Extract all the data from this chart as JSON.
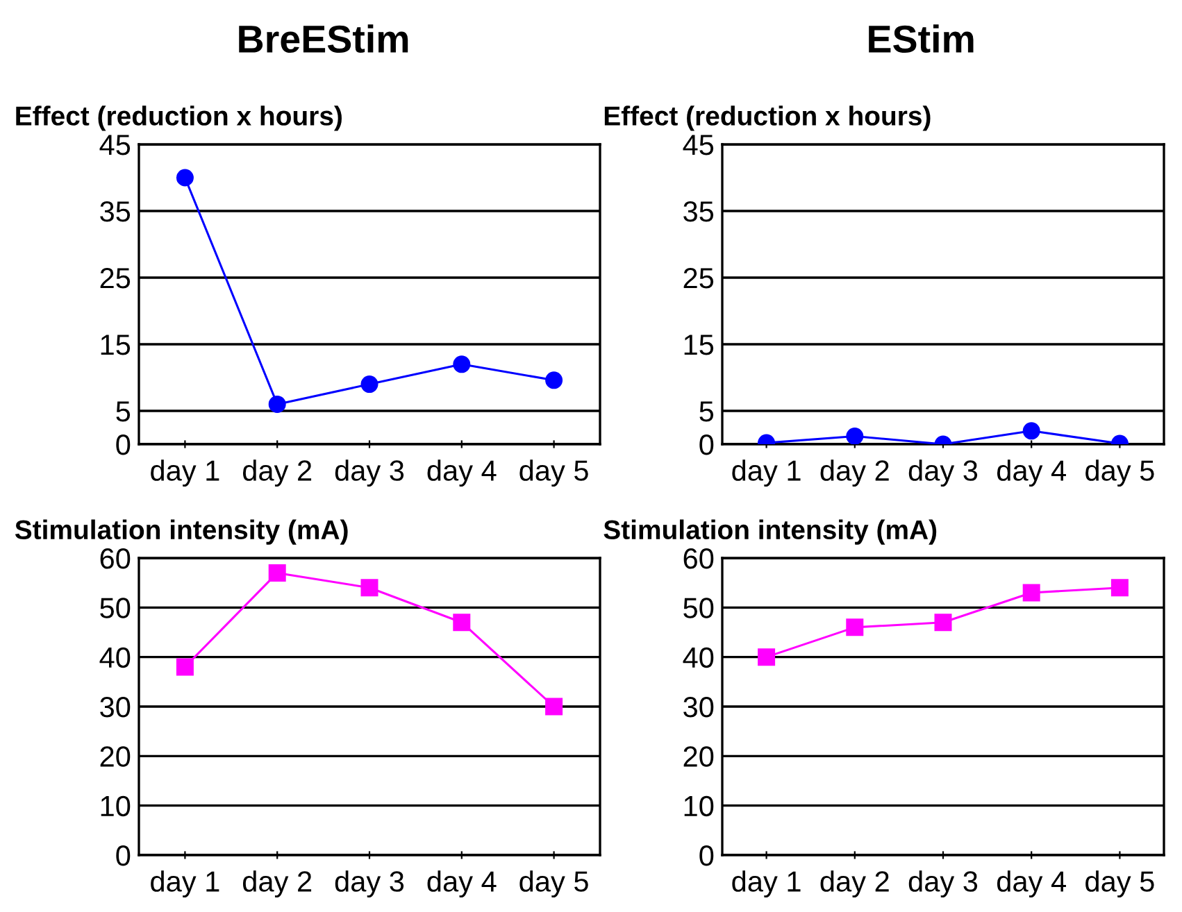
{
  "chart_data": [
    {
      "type": "line",
      "title": "BreEStim",
      "ylabel": "Effect (reduction x hours)",
      "categories": [
        "day 1",
        "day 2",
        "day 3",
        "day 4",
        "day 5"
      ],
      "series": [
        {
          "color": "#0000ff",
          "values": [
            40,
            6,
            9,
            12,
            9.6
          ]
        }
      ],
      "ylim": [
        0,
        45
      ],
      "yticks": [
        0,
        5,
        15,
        25,
        35,
        45
      ],
      "grid": "y",
      "marker": "circle",
      "line_style": "solid"
    },
    {
      "type": "line",
      "title": "EStim",
      "ylabel": "Effect (reduction x hours)",
      "categories": [
        "day 1",
        "day 2",
        "day 3",
        "day 4",
        "day 5"
      ],
      "series": [
        {
          "color": "#0000ff",
          "values": [
            0.2,
            1.2,
            0,
            2,
            0.1
          ]
        }
      ],
      "ylim": [
        0,
        45
      ],
      "yticks": [
        0,
        5,
        15,
        25,
        35,
        45
      ],
      "grid": "y",
      "marker": "circle",
      "line_style": "solid"
    },
    {
      "type": "line",
      "ylabel": "Stimulation intensity (mA)",
      "categories": [
        "day 1",
        "day 2",
        "day 3",
        "day 4",
        "day 5"
      ],
      "series": [
        {
          "color": "#ff00ff",
          "values": [
            38,
            57,
            54,
            47,
            30
          ]
        }
      ],
      "ylim": [
        0,
        60
      ],
      "yticks": [
        0,
        10,
        20,
        30,
        40,
        50,
        60
      ],
      "grid": "y",
      "marker": "square",
      "line_style": "solid"
    },
    {
      "type": "line",
      "ylabel": "Stimulation intensity (mA)",
      "categories": [
        "day 1",
        "day 2",
        "day 3",
        "day 4",
        "day 5"
      ],
      "series": [
        {
          "color": "#ff00ff",
          "values": [
            40,
            46,
            47,
            53,
            54
          ]
        }
      ],
      "ylim": [
        0,
        60
      ],
      "yticks": [
        0,
        10,
        20,
        30,
        40,
        50,
        60
      ],
      "grid": "y",
      "marker": "square",
      "line_style": "solid"
    }
  ]
}
